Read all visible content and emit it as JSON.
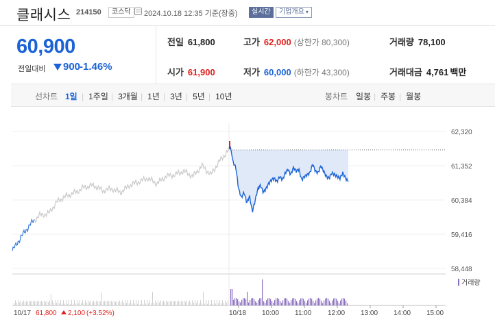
{
  "header": {
    "stock_name": "클래시스",
    "stock_code": "214150",
    "market": "코스닥",
    "timestamp": "2024.10.18 12:35 기준(장중)",
    "realtime_label": "실시간",
    "company_button": "기업개요"
  },
  "price": {
    "current": "60,900",
    "change_label": "전일대비",
    "change_value": "900",
    "change_pct": "-1.46%",
    "direction": "down"
  },
  "stats": {
    "prev_close": {
      "label": "전일",
      "value": "61,800"
    },
    "high": {
      "label": "고가",
      "value": "62,000",
      "sub": "(상한가 80,300)"
    },
    "volume": {
      "label": "거래량",
      "value": "78,100"
    },
    "open": {
      "label": "시가",
      "value": "61,900"
    },
    "low": {
      "label": "저가",
      "value": "60,000",
      "sub": "(하한가 43,300)"
    },
    "trade_value": {
      "label": "거래대금",
      "value": "4,761",
      "unit": "백만"
    }
  },
  "tabs": {
    "line_chart": "선차트",
    "periods": [
      "1일",
      "1주일",
      "3개월",
      "1년",
      "3년",
      "5년",
      "10년"
    ],
    "active_period": "1일",
    "candle_chart": "봉차트",
    "candle_periods": [
      "일봉",
      "주봉",
      "월봉"
    ]
  },
  "chart_data": {
    "type": "line",
    "y_ticks": [
      "62,320",
      "61,352",
      "60,384",
      "59,416",
      "58,448"
    ],
    "ylim": [
      58448,
      62320
    ],
    "x_labels": [
      "10/17",
      "10/18",
      "10:00",
      "11:00",
      "12:00",
      "13:00",
      "14:00",
      "15:00"
    ],
    "prev_day": {
      "date": "10/17",
      "close": "61,800",
      "change": "2,100",
      "change_pct": "(+3.52%)"
    },
    "volume_legend": "거래량",
    "series": [
      {
        "label": "10/18",
        "times": [
          "09:00",
          "09:05",
          "09:10",
          "09:15",
          "09:20",
          "09:25",
          "09:30",
          "09:35",
          "09:40",
          "09:45",
          "09:50",
          "09:55",
          "10:00",
          "10:05",
          "10:10",
          "10:15",
          "10:20",
          "10:25",
          "10:30",
          "10:35",
          "10:40",
          "10:45",
          "10:50",
          "10:55",
          "11:00",
          "11:05",
          "11:10",
          "11:15",
          "11:20",
          "11:25",
          "11:30",
          "11:35",
          "11:40",
          "11:45",
          "11:50",
          "11:55",
          "12:00",
          "12:05",
          "12:10",
          "12:15",
          "12:20",
          "12:25",
          "12:30",
          "12:35"
        ],
        "values": [
          61900,
          61450,
          61300,
          60700,
          60450,
          60600,
          60300,
          60500,
          60050,
          60350,
          60700,
          60800,
          60600,
          60700,
          60850,
          60950,
          61000,
          60900,
          61050,
          60950,
          61150,
          61250,
          61100,
          61300,
          61200,
          61250,
          60950,
          61050,
          61100,
          61150,
          61400,
          61200,
          61150,
          61350,
          61200,
          61050,
          61000,
          61150,
          61100,
          61050,
          61000,
          61150,
          61000,
          60900
        ]
      }
    ],
    "prev_day_line": [
      58950,
      59350,
      59700,
      59950,
      60000,
      60350,
      60500,
      60600,
      60750,
      60800,
      60650,
      60700,
      60600,
      60800,
      60900,
      61000,
      60850,
      61050,
      61100,
      61200,
      61050,
      61350,
      61100,
      61500,
      61800
    ]
  },
  "colors": {
    "up": "#e0201c",
    "down": "#1b63d6",
    "accent": "#5b6f9a"
  }
}
